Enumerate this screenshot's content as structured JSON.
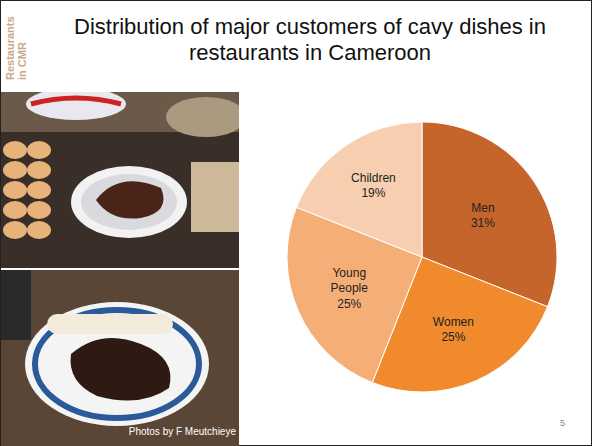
{
  "chart_data": {
    "type": "pie",
    "title": "Distribution of major customers of cavy dishes in restaurants in Cameroon",
    "categories": [
      "Men",
      "Women",
      "Young People",
      "Children"
    ],
    "values": [
      31,
      25,
      25,
      19
    ],
    "value_labels": [
      "Men\n31%",
      "Women\n25%",
      "Young\nPeople\n25%",
      "Children\n19%"
    ],
    "colors": [
      "#c5652b",
      "#f08a2c",
      "#f5ae76",
      "#f7cfb0"
    ],
    "data_labels": true
  },
  "slide": {
    "side_label": "Restaurants in CMR",
    "photo_credit": "Photos by F Meutchieye",
    "page_number": 5
  }
}
